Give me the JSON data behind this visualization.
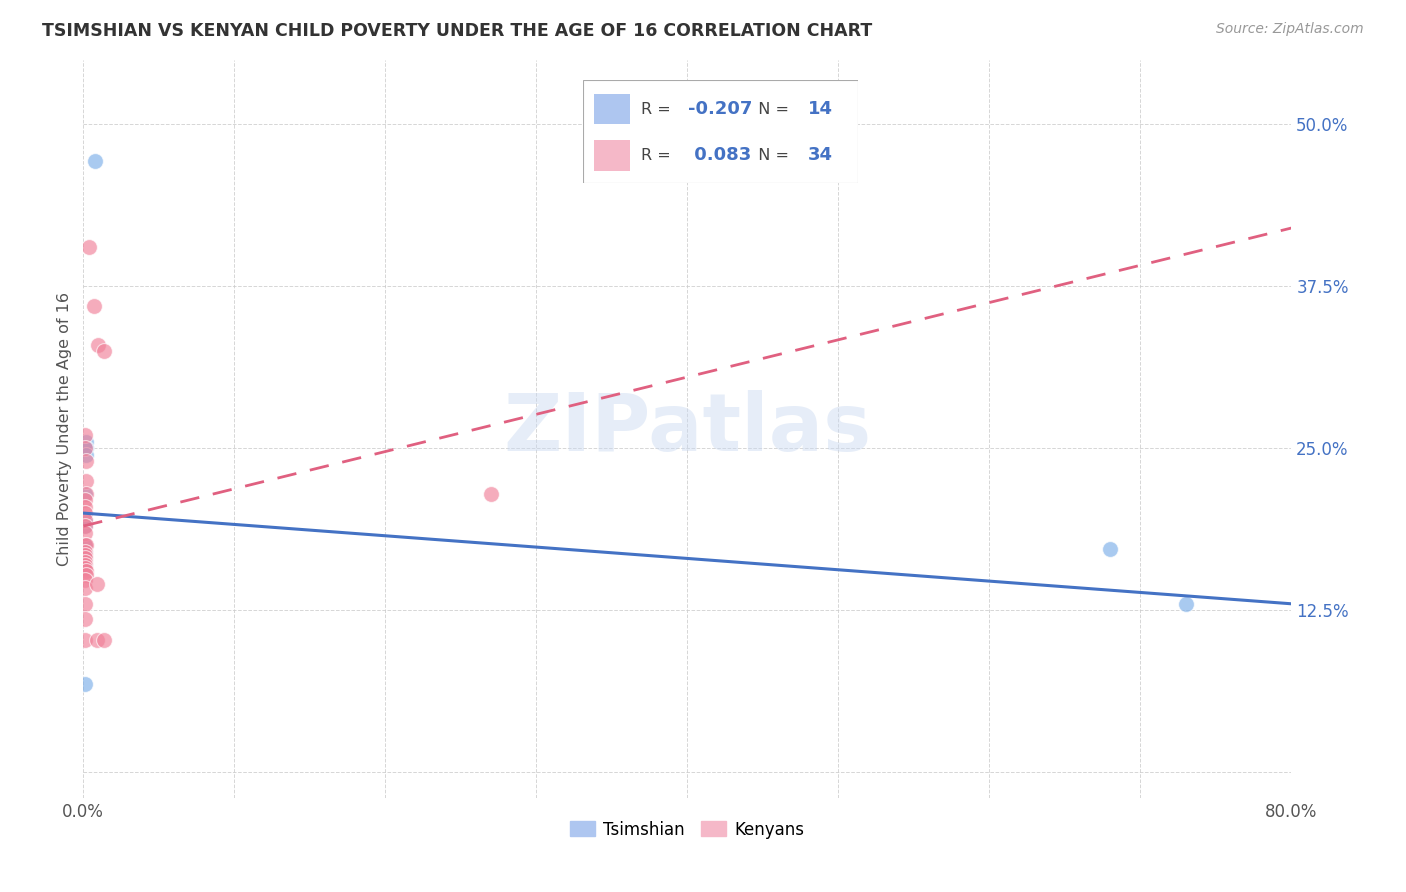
{
  "title": "TSIMSHIAN VS KENYAN CHILD POVERTY UNDER THE AGE OF 16 CORRELATION CHART",
  "source": "Source: ZipAtlas.com",
  "ylabel": "Child Poverty Under the Age of 16",
  "xlim": [
    0.0,
    0.8
  ],
  "ylim": [
    -0.02,
    0.55
  ],
  "xticks": [
    0.0,
    0.1,
    0.2,
    0.3,
    0.4,
    0.5,
    0.6,
    0.7,
    0.8
  ],
  "xticklabels": [
    "0.0%",
    "",
    "",
    "",
    "",
    "",
    "",
    "",
    "80.0%"
  ],
  "ytick_positions": [
    0.0,
    0.125,
    0.25,
    0.375,
    0.5
  ],
  "yticklabels": [
    "",
    "12.5%",
    "25.0%",
    "37.5%",
    "50.0%"
  ],
  "watermark": "ZIPatlas",
  "tsimshian_color": "#7baee8",
  "kenyan_color": "#f08098",
  "tsimshian_line_color": "#4472c4",
  "kenyan_line_color": "#e06080",
  "tsimshian_points": [
    [
      0.008,
      0.472
    ],
    [
      0.002,
      0.255
    ],
    [
      0.002,
      0.25
    ],
    [
      0.002,
      0.245
    ],
    [
      0.001,
      0.215
    ],
    [
      0.001,
      0.195
    ],
    [
      0.001,
      0.19
    ],
    [
      0.001,
      0.175
    ],
    [
      0.001,
      0.17
    ],
    [
      0.001,
      0.165
    ],
    [
      0.001,
      0.16
    ],
    [
      0.68,
      0.172
    ],
    [
      0.73,
      0.13
    ],
    [
      0.001,
      0.068
    ]
  ],
  "kenyan_points": [
    [
      0.004,
      0.405
    ],
    [
      0.007,
      0.36
    ],
    [
      0.01,
      0.33
    ],
    [
      0.014,
      0.325
    ],
    [
      0.001,
      0.26
    ],
    [
      0.001,
      0.25
    ],
    [
      0.002,
      0.24
    ],
    [
      0.002,
      0.225
    ],
    [
      0.002,
      0.215
    ],
    [
      0.001,
      0.21
    ],
    [
      0.001,
      0.205
    ],
    [
      0.001,
      0.2
    ],
    [
      0.001,
      0.195
    ],
    [
      0.001,
      0.19
    ],
    [
      0.001,
      0.185
    ],
    [
      0.001,
      0.175
    ],
    [
      0.002,
      0.175
    ],
    [
      0.001,
      0.17
    ],
    [
      0.001,
      0.168
    ],
    [
      0.001,
      0.165
    ],
    [
      0.001,
      0.162
    ],
    [
      0.001,
      0.16
    ],
    [
      0.001,
      0.158
    ],
    [
      0.002,
      0.155
    ],
    [
      0.002,
      0.152
    ],
    [
      0.001,
      0.148
    ],
    [
      0.001,
      0.142
    ],
    [
      0.27,
      0.215
    ],
    [
      0.009,
      0.145
    ],
    [
      0.001,
      0.13
    ],
    [
      0.001,
      0.118
    ],
    [
      0.001,
      0.102
    ],
    [
      0.009,
      0.102
    ],
    [
      0.014,
      0.102
    ]
  ],
  "ts_line_x": [
    0.0,
    0.8
  ],
  "ts_line_y": [
    0.2,
    0.13
  ],
  "ke_line_x": [
    0.0,
    0.8
  ],
  "ke_line_y": [
    0.19,
    0.42
  ]
}
